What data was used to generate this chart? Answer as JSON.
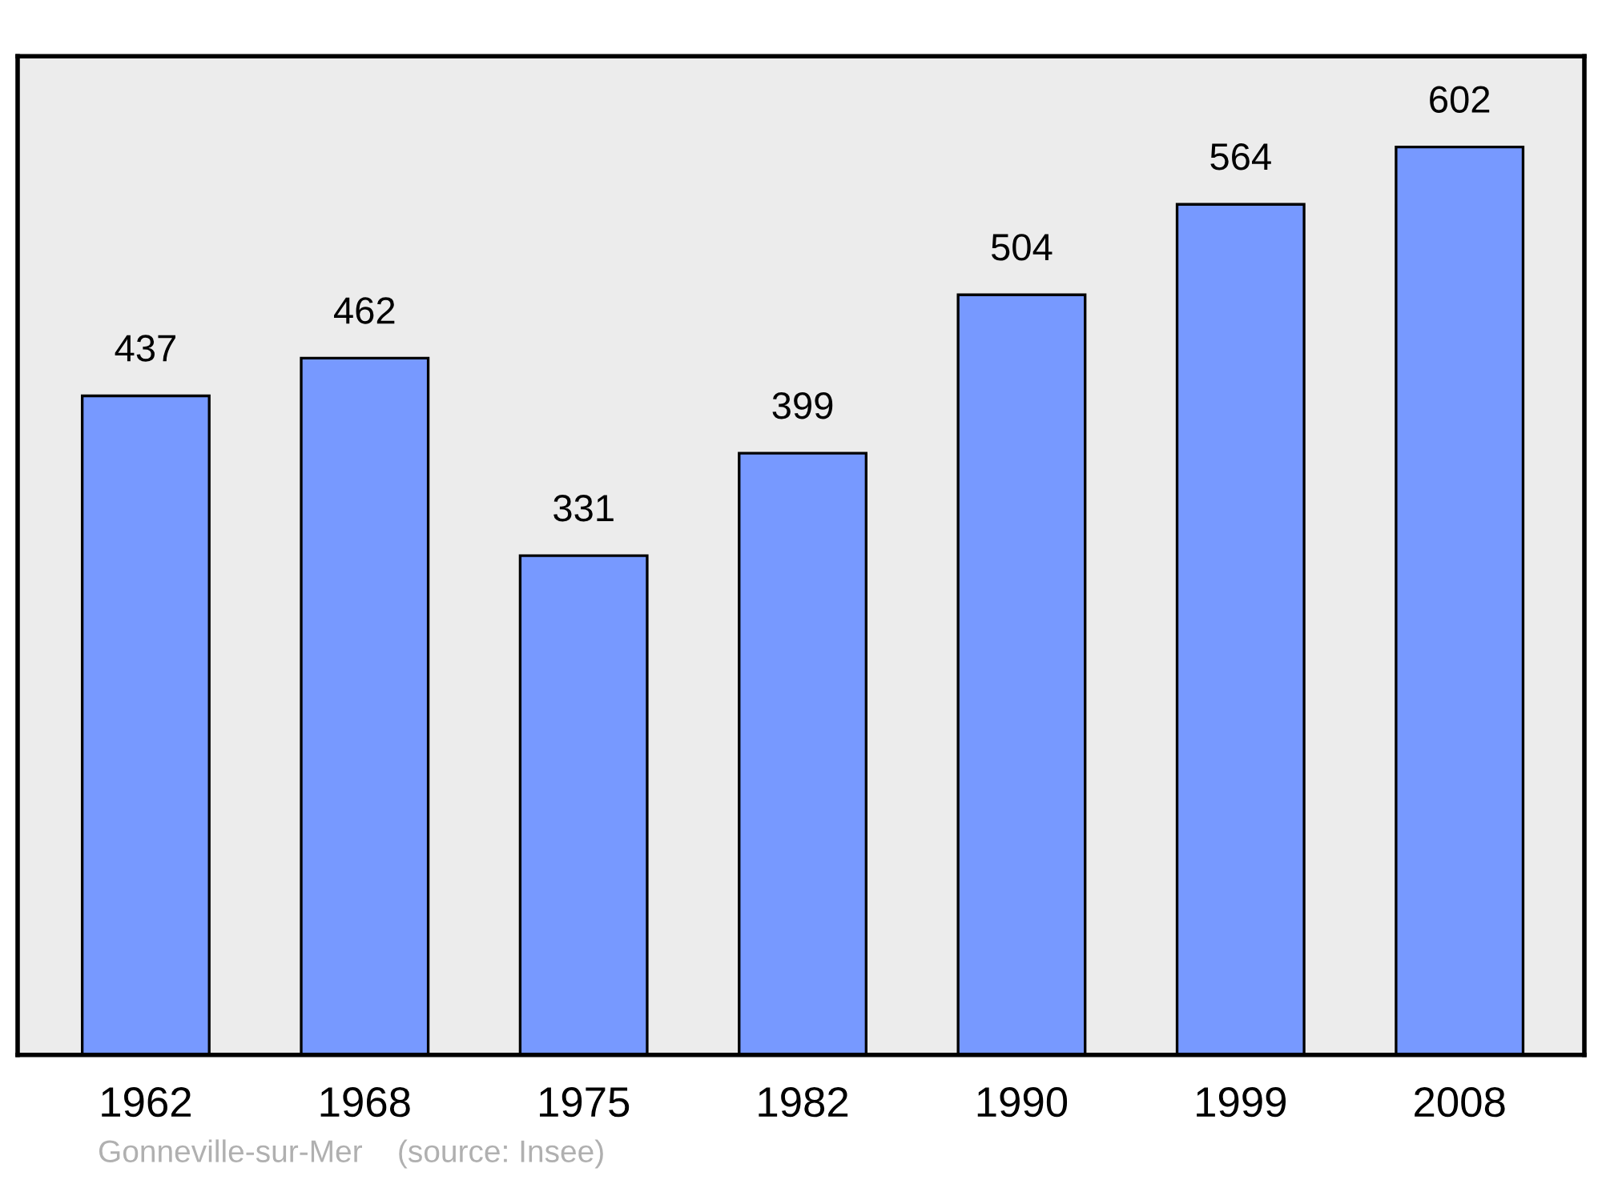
{
  "chart_data": {
    "type": "bar",
    "categories": [
      "1962",
      "1968",
      "1975",
      "1982",
      "1990",
      "1999",
      "2008"
    ],
    "values": [
      437,
      462,
      331,
      399,
      504,
      564,
      602
    ],
    "color": "#7799ff",
    "data_labels": true,
    "grid": false,
    "legend": false,
    "annotations": [
      "Gonneville-sur-Mer    (source: Insee)"
    ]
  }
}
